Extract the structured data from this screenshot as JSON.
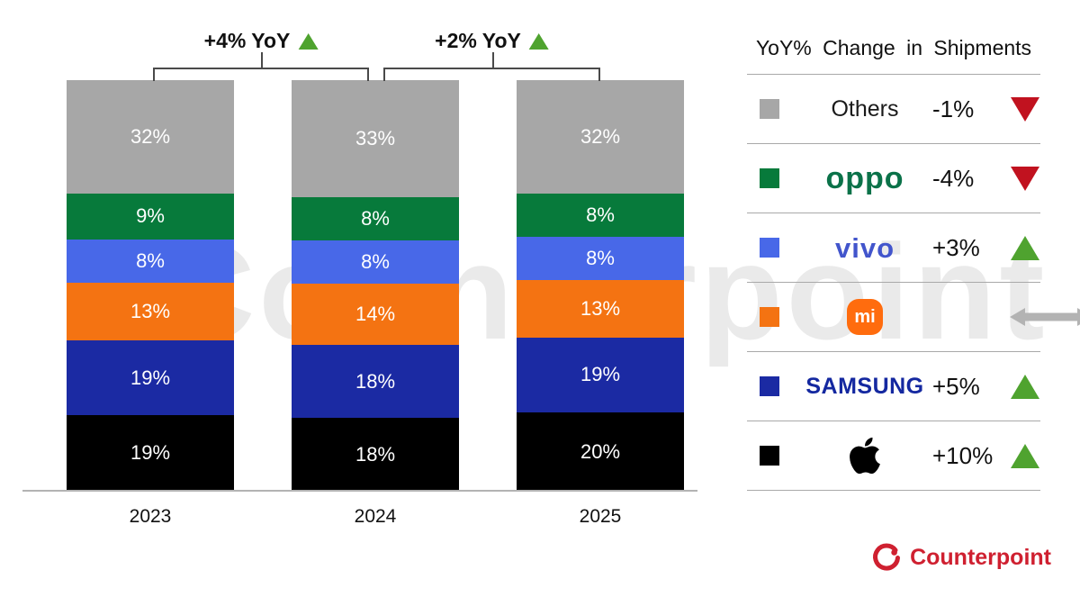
{
  "watermark": "Counterpoint",
  "chart_data": {
    "type": "bar",
    "stacked": true,
    "categories": [
      "2023",
      "2024",
      "2025"
    ],
    "value_suffix": "%",
    "series": [
      {
        "name": "Apple",
        "color": "#000000",
        "values": [
          19,
          18,
          20
        ]
      },
      {
        "name": "Samsung",
        "color": "#1b2aa3",
        "values": [
          19,
          18,
          19
        ]
      },
      {
        "name": "Xiaomi",
        "color": "#f47312",
        "values": [
          13,
          14,
          13
        ]
      },
      {
        "name": "vivo",
        "color": "#4868e8",
        "values": [
          8,
          8,
          8
        ]
      },
      {
        "name": "OPPO",
        "color": "#077a3b",
        "values": [
          9,
          8,
          8
        ]
      },
      {
        "name": "Others",
        "color": "#a7a7a7",
        "values": [
          32,
          33,
          32
        ]
      }
    ],
    "annotations": [
      {
        "label": "+4% YoY",
        "from": "2023",
        "to": "2024",
        "direction": "up"
      },
      {
        "label": "+2% YoY",
        "from": "2024",
        "to": "2025",
        "direction": "up"
      }
    ],
    "legend_position": "right",
    "grid": false
  },
  "legend": {
    "title": "YoY% Change in Shipments",
    "rows": [
      {
        "brand": "Others",
        "logo_type": "text",
        "logo_text": "Others",
        "logo_color": "#1a1a1a",
        "swatch": "#a7a7a7",
        "change": "-1%",
        "direction": "down"
      },
      {
        "brand": "OPPO",
        "logo_type": "text",
        "logo_text": "oppo",
        "logo_color": "#0b7249",
        "swatch": "#077a3b",
        "change": "-4%",
        "direction": "down"
      },
      {
        "brand": "vivo",
        "logo_type": "text",
        "logo_text": "vivo",
        "logo_color": "#4255cc",
        "swatch": "#4868e8",
        "change": "+3%",
        "direction": "up"
      },
      {
        "brand": "Xiaomi",
        "logo_type": "mi",
        "logo_text": "mi",
        "logo_color": "#ff6c0e",
        "swatch": "#f47312",
        "change": "",
        "direction": "flat"
      },
      {
        "brand": "Samsung",
        "logo_type": "text",
        "logo_text": "SAMSUNG",
        "logo_color": "#1428a0",
        "swatch": "#1b2aa3",
        "change": "+5%",
        "direction": "up"
      },
      {
        "brand": "Apple",
        "logo_type": "apple",
        "logo_text": "",
        "logo_color": "#000000",
        "swatch": "#000000",
        "change": "+10%",
        "direction": "up"
      }
    ]
  },
  "footer": {
    "brand": "Counterpoint"
  },
  "colors": {
    "up_triangle": "#4fa32f",
    "down_triangle": "#c1121f",
    "flat_arrow": "#b3b3b3",
    "counterpoint_red": "#cf2030"
  }
}
